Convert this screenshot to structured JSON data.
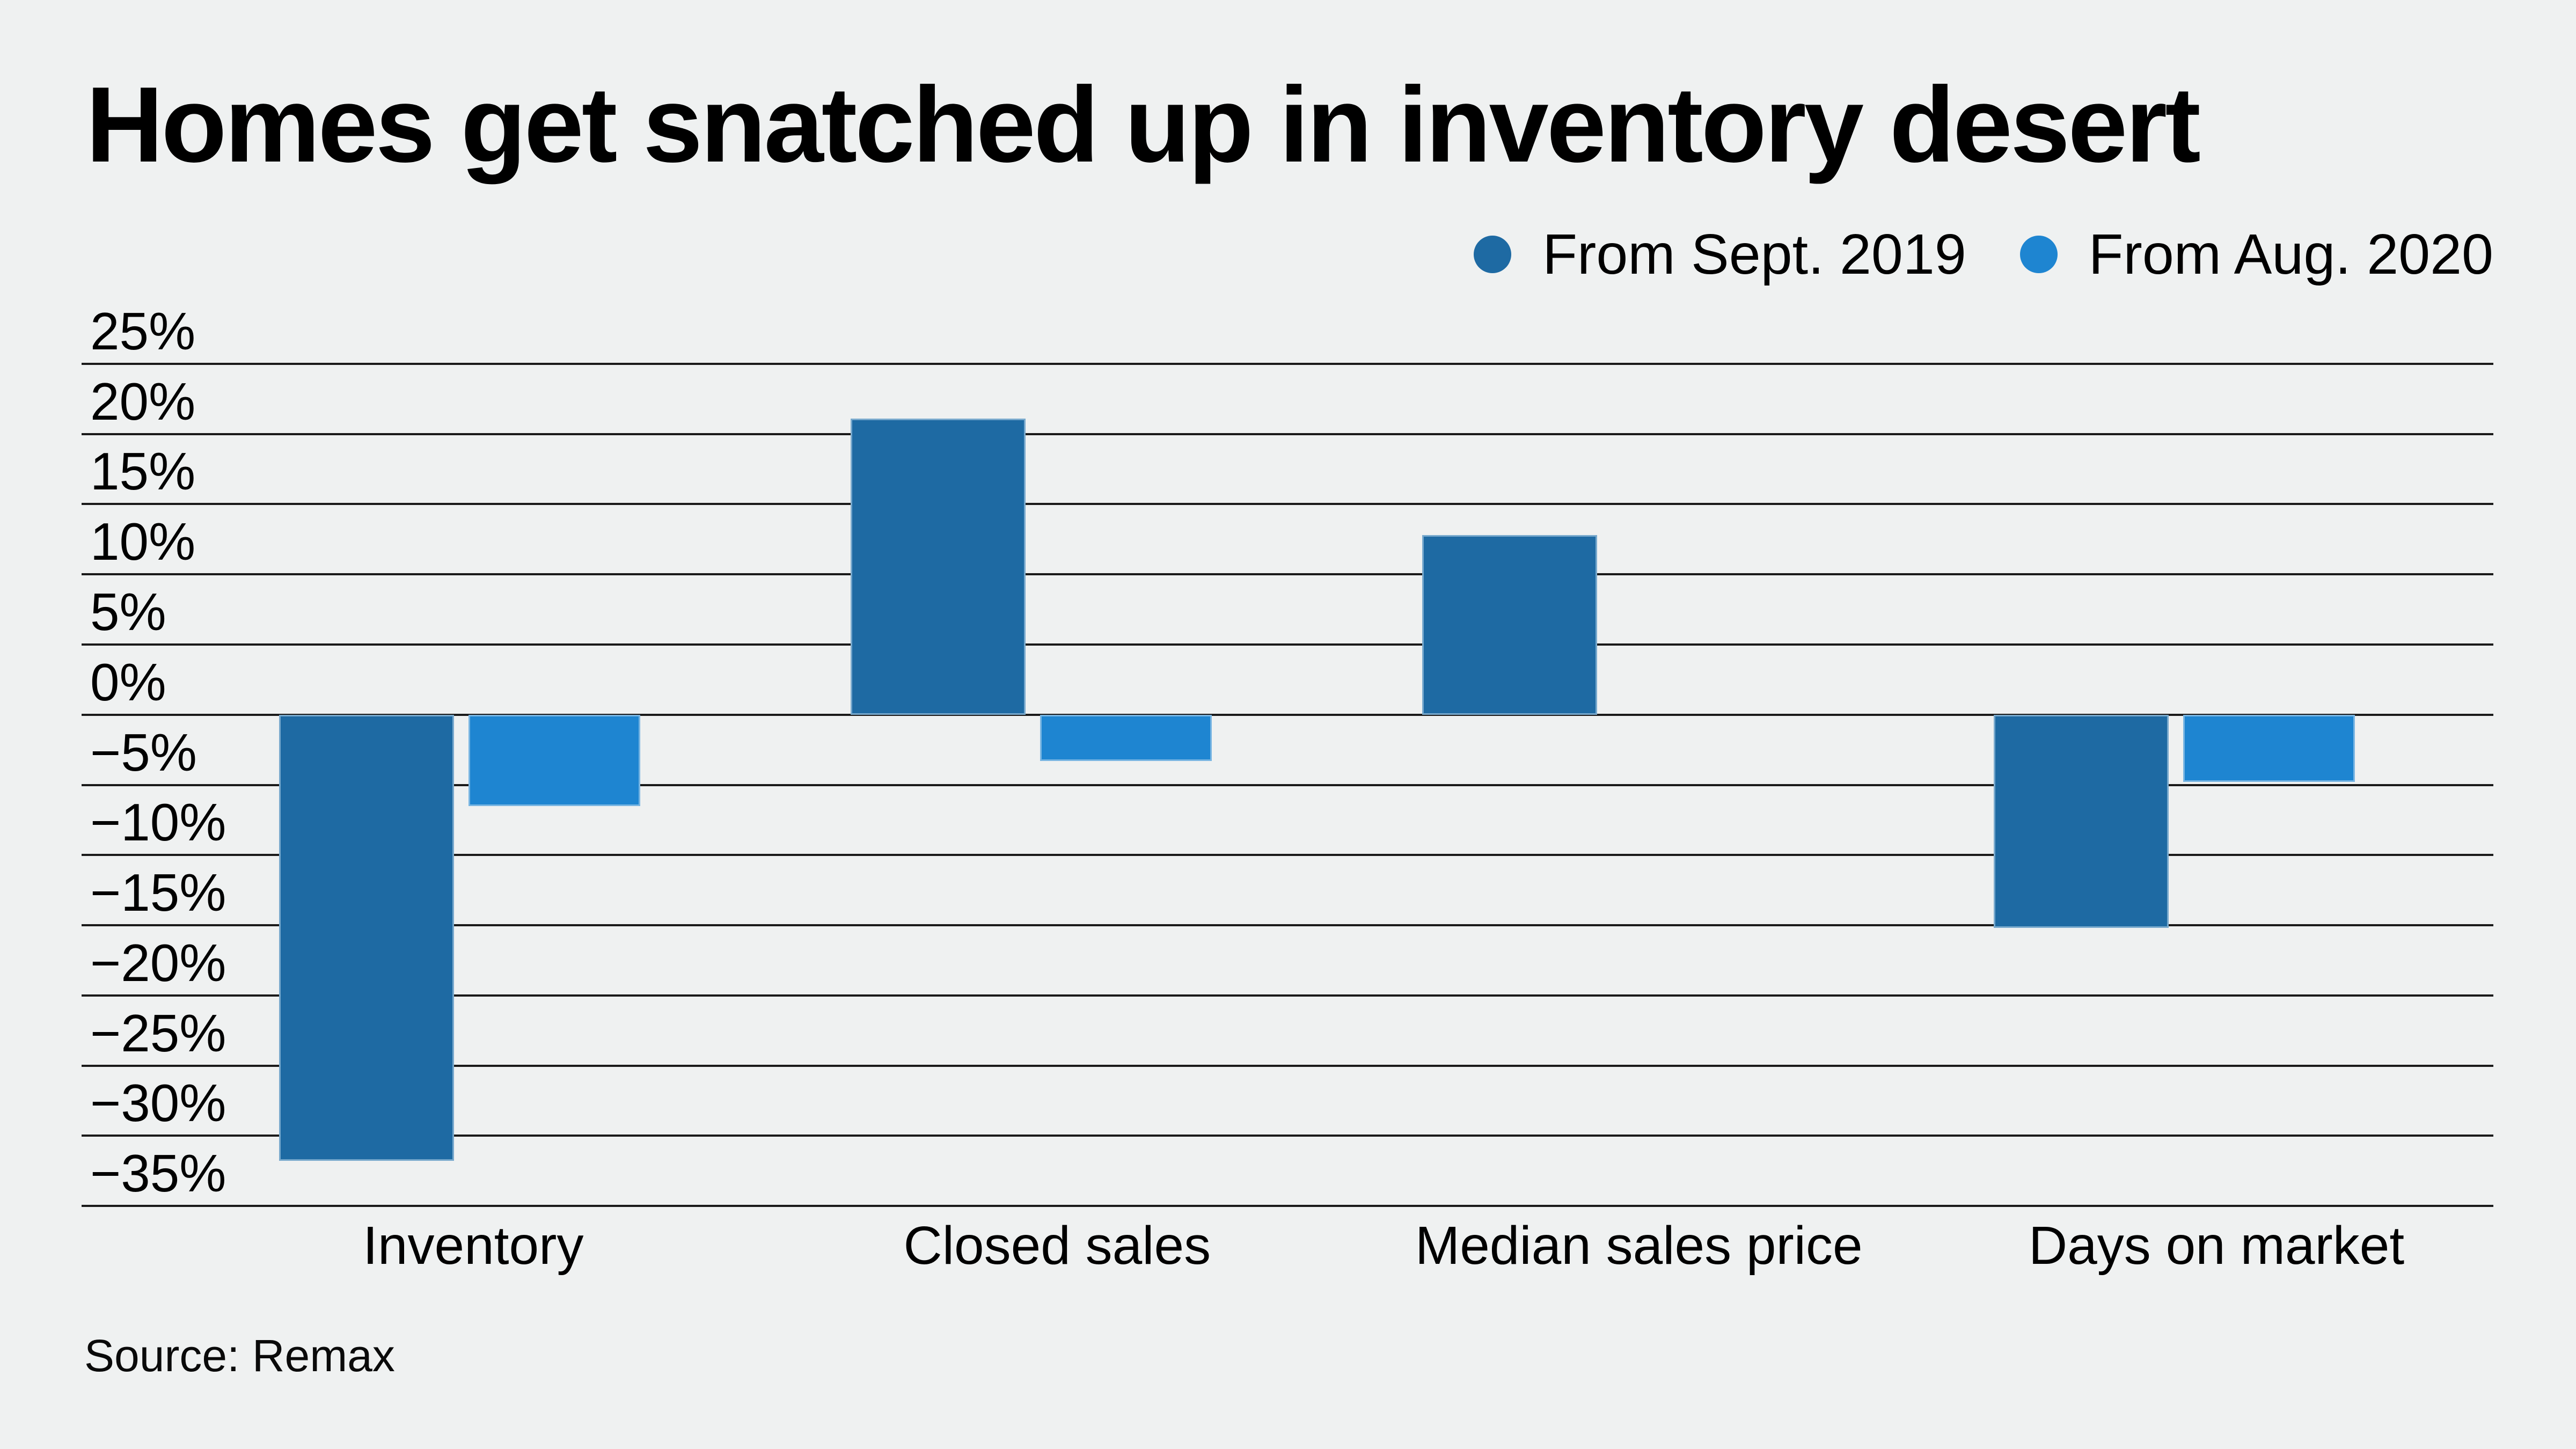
{
  "header": {
    "title": "Homes get snatched up in inventory desert"
  },
  "legend": [
    {
      "label": "From Sept. 2019",
      "color": "#1e6aa3"
    },
    {
      "label": "From Aug. 2020",
      "color": "#1e85d1"
    }
  ],
  "chart_data": {
    "type": "bar",
    "title": "Homes get snatched up in inventory desert",
    "categories": [
      "Inventory",
      "Closed sales",
      "Median sales price",
      "Days on market"
    ],
    "series": [
      {
        "name": "From Sept. 2019",
        "color": "#1e6aa3",
        "values": [
          -31.8,
          21.1,
          12.8,
          -15.2
        ]
      },
      {
        "name": "From Aug. 2020",
        "color": "#1e85d1",
        "values": [
          -6.5,
          -3.3,
          0,
          -4.8
        ]
      }
    ],
    "xlabel": "",
    "ylabel": "",
    "ylim": [
      -35,
      25
    ],
    "ytick_step": 5,
    "ytick_labels": [
      "25%",
      "20%",
      "15%",
      "10%",
      "5%",
      "0%",
      "−5%",
      "−10%",
      "−15%",
      "−20%",
      "−25%",
      "−30%",
      "−35%"
    ],
    "grid": true,
    "legend_position": "top-right"
  },
  "footer": {
    "source": "Source: Remax"
  },
  "colors": {
    "background": "#eff1f1",
    "gridline": "#1a1a1a",
    "text": "#000000"
  }
}
